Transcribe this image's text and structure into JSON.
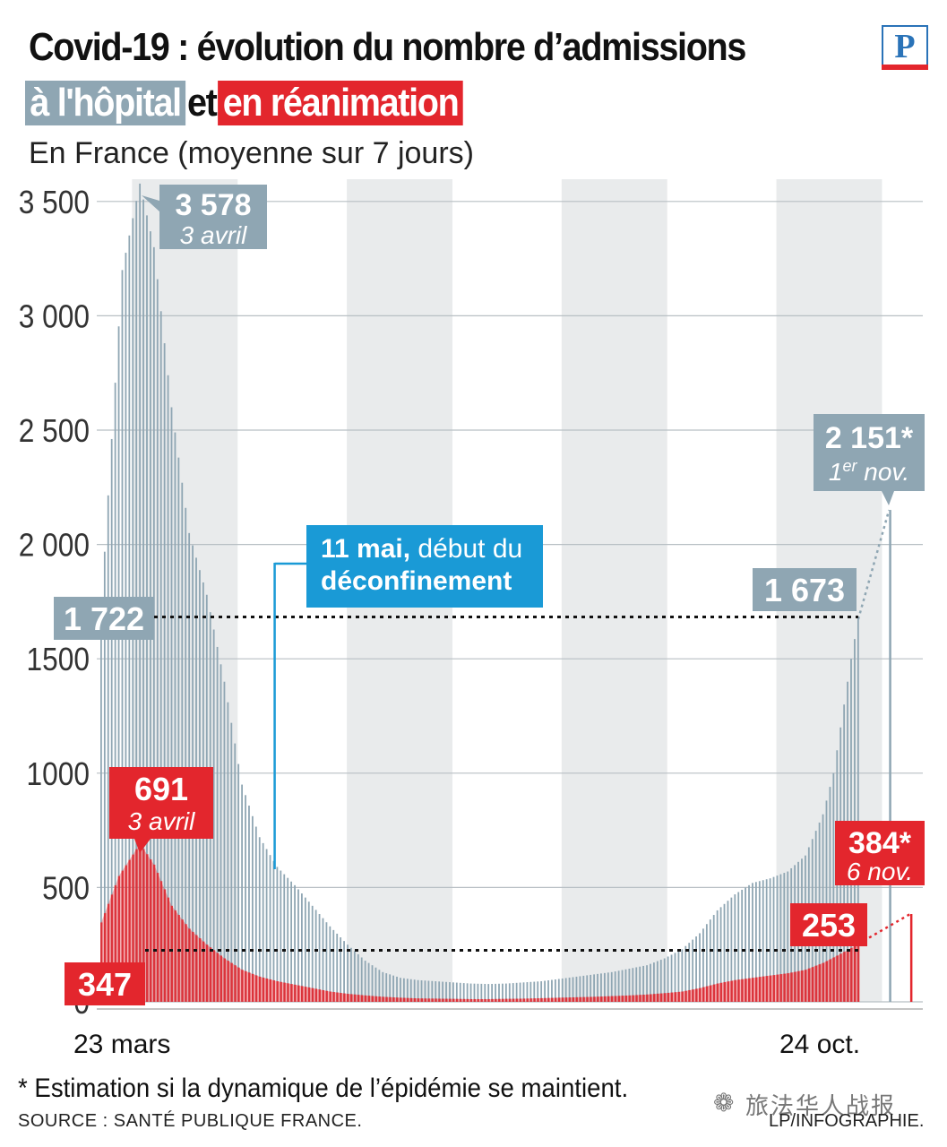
{
  "title": "Covid-19 : évolution du nombre d’admissions",
  "subtitle": {
    "hosp_label": "à l'hôpital",
    "et": "et",
    "rea_label": "en réanimation"
  },
  "description": "En France (moyenne sur 7 jours)",
  "logo_letter": "P",
  "colors": {
    "hosp": "#8fa6b3",
    "rea": "#e3262d",
    "grid": "#b8bfc4",
    "band": "#e9ebec",
    "callout": "#1a9ad6"
  },
  "chart_data": {
    "type": "bar",
    "title": "Covid-19 : évolution du nombre d’admissions à l'hôpital et en réanimation",
    "ylim": [
      0,
      3500
    ],
    "yticks": [
      0,
      500,
      1000,
      1500,
      2000,
      2500,
      3000,
      3500
    ],
    "ytick_labels": [
      "0",
      "500",
      "1000",
      "1500",
      "2 000",
      "2 500",
      "3 000",
      "3 500"
    ],
    "x_labels": {
      "start": "23 mars",
      "end": "24 oct."
    },
    "days": 216,
    "series": [
      {
        "name": "à l'hôpital",
        "anchors": [
          [
            0,
            1722
          ],
          [
            6,
            3200
          ],
          [
            11,
            3578
          ],
          [
            15,
            3300
          ],
          [
            20,
            2600
          ],
          [
            25,
            2050
          ],
          [
            30,
            1780
          ],
          [
            35,
            1400
          ],
          [
            40,
            950
          ],
          [
            45,
            720
          ],
          [
            50,
            590
          ],
          [
            55,
            510
          ],
          [
            60,
            420
          ],
          [
            65,
            330
          ],
          [
            70,
            250
          ],
          [
            75,
            180
          ],
          [
            80,
            130
          ],
          [
            85,
            105
          ],
          [
            90,
            95
          ],
          [
            95,
            90
          ],
          [
            100,
            85
          ],
          [
            105,
            80
          ],
          [
            110,
            78
          ],
          [
            115,
            80
          ],
          [
            120,
            85
          ],
          [
            125,
            90
          ],
          [
            130,
            100
          ],
          [
            135,
            110
          ],
          [
            140,
            120
          ],
          [
            145,
            130
          ],
          [
            150,
            145
          ],
          [
            155,
            160
          ],
          [
            160,
            190
          ],
          [
            165,
            230
          ],
          [
            170,
            300
          ],
          [
            175,
            400
          ],
          [
            180,
            470
          ],
          [
            185,
            520
          ],
          [
            190,
            540
          ],
          [
            195,
            570
          ],
          [
            200,
            640
          ],
          [
            205,
            820
          ],
          [
            208,
            1000
          ],
          [
            211,
            1300
          ],
          [
            213,
            1500
          ],
          [
            215,
            1673
          ]
        ],
        "end_value": 1673,
        "estimate": {
          "value": 2151,
          "label": "1er nov."
        }
      },
      {
        "name": "en réanimation",
        "anchors": [
          [
            0,
            347
          ],
          [
            5,
            550
          ],
          [
            11,
            691
          ],
          [
            15,
            600
          ],
          [
            20,
            420
          ],
          [
            25,
            320
          ],
          [
            30,
            250
          ],
          [
            35,
            190
          ],
          [
            40,
            140
          ],
          [
            45,
            110
          ],
          [
            50,
            90
          ],
          [
            55,
            75
          ],
          [
            60,
            60
          ],
          [
            65,
            45
          ],
          [
            70,
            35
          ],
          [
            75,
            28
          ],
          [
            80,
            22
          ],
          [
            85,
            18
          ],
          [
            90,
            15
          ],
          [
            95,
            14
          ],
          [
            100,
            13
          ],
          [
            105,
            12
          ],
          [
            110,
            12
          ],
          [
            115,
            13
          ],
          [
            120,
            14
          ],
          [
            125,
            16
          ],
          [
            130,
            18
          ],
          [
            135,
            20
          ],
          [
            140,
            22
          ],
          [
            145,
            25
          ],
          [
            150,
            28
          ],
          [
            155,
            32
          ],
          [
            160,
            38
          ],
          [
            165,
            45
          ],
          [
            170,
            60
          ],
          [
            175,
            80
          ],
          [
            180,
            95
          ],
          [
            185,
            105
          ],
          [
            190,
            115
          ],
          [
            195,
            125
          ],
          [
            200,
            140
          ],
          [
            205,
            170
          ],
          [
            210,
            210
          ],
          [
            215,
            253
          ]
        ],
        "end_value": 253,
        "estimate": {
          "value": 384,
          "label": "6 nov."
        }
      }
    ],
    "annotations": {
      "hosp_peak": {
        "value": "3 578",
        "date": "3 avril"
      },
      "hosp_start": {
        "value": "1 722"
      },
      "hosp_end": {
        "value": "1 673"
      },
      "hosp_estimate": {
        "value": "2 151*",
        "date_main": "1",
        "date_sup": "er",
        "date_rest": " nov."
      },
      "rea_peak": {
        "value": "691",
        "date": "3 avril"
      },
      "rea_start": {
        "value": "347"
      },
      "rea_end": {
        "value": "253"
      },
      "rea_estimate": {
        "value": "384*",
        "date": "6 nov."
      },
      "deconf": {
        "bold1": "11 mai,",
        "rest1": " début du",
        "bold2": "déconfinement",
        "day": 49
      }
    }
  },
  "footer": {
    "note": "* Estimation si la dynamique de l’épidémie se maintient.",
    "source": "SOURCE : SANTÉ PUBLIQUE FRANCE.",
    "credit": "LP/INFOGRAPHIE.",
    "watermark": "旅法华人战报"
  }
}
